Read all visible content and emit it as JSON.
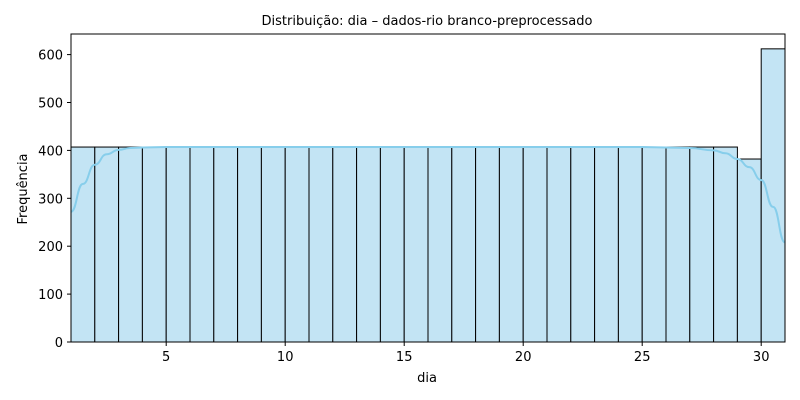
{
  "chart_data": {
    "type": "bar",
    "subtype": "histogram-with-kde",
    "title": "Distribuição: dia – dados-rio branco-preprocessado",
    "xlabel": "dia",
    "ylabel": "Frequência",
    "xlim": [
      1,
      31
    ],
    "ylim": [
      0,
      643
    ],
    "xticks": [
      5,
      10,
      15,
      20,
      25,
      30
    ],
    "yticks": [
      0,
      100,
      200,
      300,
      400,
      500,
      600
    ],
    "grid": false,
    "bin_edges": [
      1,
      2,
      3,
      4,
      5,
      6,
      7,
      8,
      9,
      10,
      11,
      12,
      13,
      14,
      15,
      16,
      17,
      18,
      19,
      20,
      21,
      22,
      23,
      24,
      25,
      26,
      27,
      28,
      29,
      30,
      31
    ],
    "values": [
      407,
      407,
      407,
      407,
      407,
      407,
      407,
      407,
      407,
      407,
      407,
      407,
      407,
      407,
      407,
      407,
      407,
      407,
      407,
      407,
      407,
      407,
      407,
      407,
      407,
      407,
      407,
      407,
      382,
      612
    ],
    "kde": {
      "x": [
        1,
        1.5,
        2,
        2.5,
        3,
        3.5,
        4,
        5,
        7,
        10,
        15,
        20,
        25,
        26,
        27,
        28,
        28.5,
        29,
        29.5,
        30,
        30.5,
        31
      ],
      "y": [
        272,
        330,
        370,
        392,
        401,
        405,
        406,
        407,
        407,
        407,
        407,
        407,
        407,
        406,
        405,
        400,
        394,
        382,
        365,
        338,
        282,
        208
      ]
    },
    "colors": {
      "bar_fill": "#c3e4f4",
      "bar_edge": "#000000",
      "kde_line": "#87ceeb"
    }
  }
}
